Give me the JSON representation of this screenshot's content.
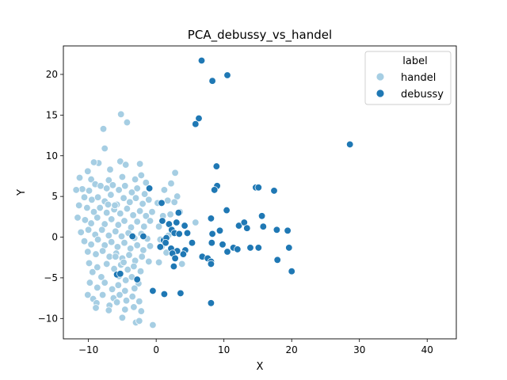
{
  "chart_data": {
    "type": "scatter",
    "title": "PCA_debussy_vs_handel",
    "xlabel": "X",
    "ylabel": "Y",
    "xlim": [
      -13.7,
      44.3
    ],
    "ylim": [
      -12.5,
      23.5
    ],
    "xticks": [
      -10,
      0,
      10,
      20,
      30,
      40
    ],
    "yticks": [
      -10,
      -5,
      0,
      5,
      10,
      15,
      20
    ],
    "grid": false,
    "legend": {
      "title": "label",
      "placement": "top-right"
    },
    "series": [
      {
        "name": "handel",
        "color": "#a6cee3",
        "points": [
          [
            -5.2,
            15.1
          ],
          [
            -4.3,
            14.1
          ],
          [
            -7.8,
            13.3
          ],
          [
            -7.6,
            10.9
          ],
          [
            -10.1,
            8.1
          ],
          [
            -5.3,
            9.3
          ],
          [
            -8.5,
            9.1
          ],
          [
            -4.5,
            8.9
          ],
          [
            -2.4,
            9.0
          ],
          [
            -6.8,
            8.3
          ],
          [
            -9.2,
            9.2
          ],
          [
            -11.3,
            7.3
          ],
          [
            -9.6,
            7.1
          ],
          [
            -7.0,
            7.0
          ],
          [
            -5.0,
            7.4
          ],
          [
            -3.1,
            7.1
          ],
          [
            -2.2,
            7.6
          ],
          [
            -1.5,
            6.7
          ],
          [
            2.8,
            7.9
          ],
          [
            -10.9,
            5.9
          ],
          [
            -9.9,
            5.7
          ],
          [
            -9.0,
            6.5
          ],
          [
            -8.2,
            6.3
          ],
          [
            -7.3,
            6.0
          ],
          [
            -6.4,
            6.4
          ],
          [
            -5.5,
            5.8
          ],
          [
            -4.6,
            6.3
          ],
          [
            -3.6,
            5.5
          ],
          [
            -2.8,
            6.0
          ],
          [
            -1.7,
            5.3
          ],
          [
            1.2,
            5.8
          ],
          [
            2.2,
            6.6
          ],
          [
            3.1,
            5.0
          ],
          [
            -11.8,
            5.8
          ],
          [
            -10.6,
            4.9
          ],
          [
            -9.5,
            4.6
          ],
          [
            -8.6,
            4.9
          ],
          [
            -7.6,
            4.4
          ],
          [
            -6.7,
            5.2
          ],
          [
            -5.8,
            4.0
          ],
          [
            -4.8,
            4.8
          ],
          [
            -3.9,
            4.3
          ],
          [
            -3.0,
            4.8
          ],
          [
            -2.0,
            4.1
          ],
          [
            -1.1,
            4.6
          ],
          [
            0.2,
            4.2
          ],
          [
            1.7,
            4.5
          ],
          [
            2.7,
            4.3
          ],
          [
            -11.4,
            3.9
          ],
          [
            -10.2,
            3.6
          ],
          [
            -9.2,
            3.1
          ],
          [
            -8.3,
            3.6
          ],
          [
            -7.3,
            3.0
          ],
          [
            -6.2,
            3.4
          ],
          [
            -5.3,
            2.9
          ],
          [
            -4.3,
            3.5
          ],
          [
            -3.4,
            2.7
          ],
          [
            -2.4,
            3.2
          ],
          [
            -1.5,
            2.6
          ],
          [
            -0.6,
            3.1
          ],
          [
            1.0,
            2.6
          ],
          [
            2.1,
            2.8
          ],
          [
            3.5,
            3.1
          ],
          [
            5.8,
            1.8
          ],
          [
            -11.6,
            2.4
          ],
          [
            -10.5,
            2.1
          ],
          [
            -9.6,
            1.7
          ],
          [
            -8.7,
            2.4
          ],
          [
            -7.6,
            1.6
          ],
          [
            -6.6,
            2.2
          ],
          [
            -5.6,
            1.5
          ],
          [
            -4.7,
            2.0
          ],
          [
            -3.7,
            1.2
          ],
          [
            -2.8,
            1.9
          ],
          [
            -1.8,
            1.3
          ],
          [
            -0.9,
            2.0
          ],
          [
            0.4,
            1.3
          ],
          [
            -11.1,
            0.6
          ],
          [
            -10.0,
            0.9
          ],
          [
            -9.0,
            0.3
          ],
          [
            -8.0,
            0.9
          ],
          [
            -7.0,
            0.2
          ],
          [
            -6.0,
            0.7
          ],
          [
            -5.1,
            0.1
          ],
          [
            -4.1,
            0.5
          ],
          [
            -3.2,
            -0.1
          ],
          [
            -2.2,
            0.4
          ],
          [
            -1.3,
            -0.2
          ],
          [
            0.6,
            -0.3
          ],
          [
            1.8,
            0.2
          ],
          [
            -10.6,
            -0.5
          ],
          [
            -9.6,
            -0.9
          ],
          [
            -8.6,
            -0.3
          ],
          [
            -7.6,
            -1.0
          ],
          [
            -6.6,
            -0.6
          ],
          [
            -5.7,
            -1.2
          ],
          [
            -4.7,
            -0.7
          ],
          [
            -3.8,
            -1.4
          ],
          [
            -2.8,
            -1.0
          ],
          [
            -1.9,
            -1.6
          ],
          [
            -0.9,
            -1.1
          ],
          [
            0.8,
            -1.2
          ],
          [
            1.5,
            -1.9
          ],
          [
            -10.1,
            -1.8
          ],
          [
            -8.9,
            -2.1
          ],
          [
            -7.9,
            -1.7
          ],
          [
            -6.9,
            -2.4
          ],
          [
            -5.9,
            -2.0
          ],
          [
            -5.0,
            -2.6
          ],
          [
            -4.0,
            -2.2
          ],
          [
            -3.1,
            -2.9
          ],
          [
            -2.1,
            -2.4
          ],
          [
            -1.1,
            -3.0
          ],
          [
            0.4,
            -3.1
          ],
          [
            3.8,
            -3.3
          ],
          [
            -9.9,
            -3.2
          ],
          [
            -8.7,
            -3.7
          ],
          [
            -7.3,
            -3.3
          ],
          [
            -6.2,
            -3.9
          ],
          [
            -5.2,
            -3.4
          ],
          [
            -4.2,
            -4.0
          ],
          [
            -3.3,
            -3.6
          ],
          [
            -2.3,
            -4.2
          ],
          [
            -9.4,
            -4.3
          ],
          [
            -8.1,
            -4.9
          ],
          [
            -5.5,
            -4.8
          ],
          [
            -4.5,
            -5.3
          ],
          [
            -3.6,
            -4.9
          ],
          [
            -2.6,
            -5.7
          ],
          [
            -9.8,
            -5.6
          ],
          [
            -8.7,
            -6.2
          ],
          [
            -7.6,
            -5.6
          ],
          [
            -6.5,
            -6.4
          ],
          [
            -5.6,
            -5.9
          ],
          [
            -4.6,
            -6.6
          ],
          [
            -3.2,
            -6.3
          ],
          [
            -10.1,
            -7.1
          ],
          [
            -9.3,
            -7.6
          ],
          [
            -7.9,
            -7.1
          ],
          [
            -6.3,
            -7.5
          ],
          [
            -5.4,
            -7.1
          ],
          [
            -4.4,
            -7.8
          ],
          [
            -3.5,
            -7.3
          ],
          [
            -2.5,
            -7.9
          ],
          [
            -8.8,
            -8.1
          ],
          [
            -6.9,
            -8.4
          ],
          [
            -5.8,
            -8.0
          ],
          [
            -4.6,
            -8.9
          ],
          [
            -3.3,
            -8.6
          ],
          [
            -2.2,
            -9.1
          ],
          [
            -8.9,
            -8.7
          ],
          [
            -7.0,
            -9.0
          ],
          [
            -5.0,
            -9.9
          ],
          [
            -3.0,
            -10.5
          ],
          [
            -2.5,
            -10.3
          ],
          [
            -0.5,
            -10.8
          ],
          [
            -6.0,
            -2.4
          ],
          [
            -4.8,
            -3.1
          ],
          [
            -7.1,
            4.0
          ],
          [
            -6.1,
            3.9
          ]
        ]
      },
      {
        "name": "debussy",
        "color": "#1f78b4",
        "points": [
          [
            6.7,
            21.7
          ],
          [
            10.5,
            19.9
          ],
          [
            8.3,
            19.2
          ],
          [
            6.3,
            14.6
          ],
          [
            5.8,
            13.9
          ],
          [
            28.6,
            11.4
          ],
          [
            8.9,
            8.7
          ],
          [
            9.0,
            6.3
          ],
          [
            8.6,
            5.8
          ],
          [
            14.7,
            6.1
          ],
          [
            15.1,
            6.1
          ],
          [
            17.4,
            5.7
          ],
          [
            -1.0,
            6.0
          ],
          [
            0.8,
            4.2
          ],
          [
            3.3,
            3.0
          ],
          [
            10.4,
            3.3
          ],
          [
            15.6,
            2.6
          ],
          [
            8.1,
            2.3
          ],
          [
            0.9,
            2.0
          ],
          [
            1.9,
            1.6
          ],
          [
            3.0,
            1.8
          ],
          [
            2.3,
            0.9
          ],
          [
            4.2,
            1.4
          ],
          [
            12.2,
            1.4
          ],
          [
            13.0,
            1.8
          ],
          [
            13.4,
            1.1
          ],
          [
            15.8,
            1.3
          ],
          [
            17.8,
            0.9
          ],
          [
            19.4,
            0.8
          ],
          [
            -3.5,
            0.1
          ],
          [
            -1.9,
            0.1
          ],
          [
            1.1,
            -0.4
          ],
          [
            2.7,
            0.5
          ],
          [
            3.4,
            0.4
          ],
          [
            4.6,
            0.5
          ],
          [
            8.3,
            0.4
          ],
          [
            9.4,
            0.8
          ],
          [
            1.5,
            -0.1
          ],
          [
            1.4,
            -0.7
          ],
          [
            0.6,
            -1.2
          ],
          [
            2.2,
            -1.4
          ],
          [
            3.1,
            -1.7
          ],
          [
            4.3,
            -1.6
          ],
          [
            5.3,
            -0.7
          ],
          [
            8.2,
            -0.7
          ],
          [
            9.8,
            -0.9
          ],
          [
            11.4,
            -1.3
          ],
          [
            12.0,
            -1.5
          ],
          [
            13.9,
            -1.3
          ],
          [
            15.1,
            -1.3
          ],
          [
            19.6,
            -1.3
          ],
          [
            2.4,
            -2.0
          ],
          [
            2.8,
            -2.6
          ],
          [
            4.0,
            -2.1
          ],
          [
            6.8,
            -2.4
          ],
          [
            7.6,
            -2.6
          ],
          [
            8.1,
            -3.0
          ],
          [
            10.5,
            -1.8
          ],
          [
            17.9,
            -2.8
          ],
          [
            20.0,
            -4.2
          ],
          [
            8.1,
            -3.3
          ],
          [
            2.6,
            -3.6
          ],
          [
            -5.8,
            -4.6
          ],
          [
            -5.3,
            -4.5
          ],
          [
            -2.8,
            -5.2
          ],
          [
            -0.5,
            -6.6
          ],
          [
            1.2,
            -7.0
          ],
          [
            3.6,
            -6.9
          ],
          [
            8.1,
            -8.1
          ]
        ]
      }
    ]
  }
}
